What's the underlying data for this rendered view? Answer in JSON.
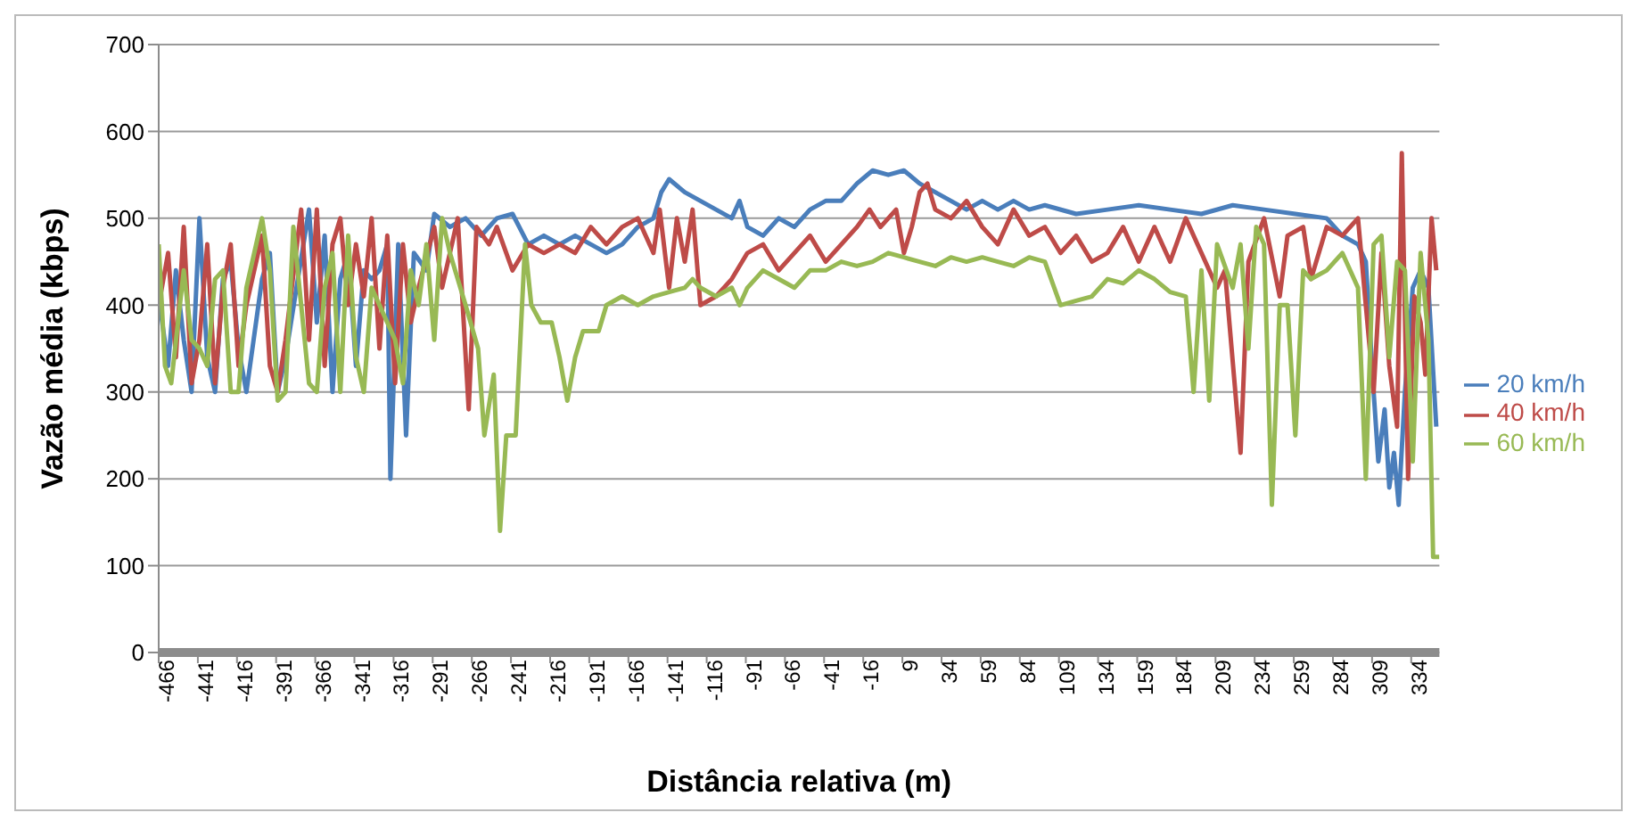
{
  "chart_data": {
    "type": "line",
    "xlabel": "Distância relativa (m)",
    "ylabel": "Vazão média (kbps)",
    "xlim": [
      -466,
      352
    ],
    "xticks": [
      -466,
      -441,
      -416,
      -391,
      -366,
      -341,
      -316,
      -291,
      -266,
      -241,
      -216,
      -191,
      -166,
      -141,
      -116,
      -91,
      -66,
      -41,
      -16,
      9,
      34,
      59,
      84,
      109,
      134,
      159,
      184,
      209,
      234,
      259,
      284,
      309,
      334
    ],
    "ylim": [
      0,
      700
    ],
    "yticks": [
      0,
      100,
      200,
      300,
      400,
      500,
      600,
      700
    ],
    "grid": "y",
    "legend": "right",
    "marker": "none",
    "line_style": "solid",
    "series": [
      {
        "name": "20 km/h",
        "color": "#4a7ebb",
        "x": [
          -466,
          -460,
          -455,
          -450,
          -445,
          -440,
          -435,
          -430,
          -425,
          -420,
          -415,
          -410,
          -400,
          -395,
          -390,
          -385,
          -378,
          -370,
          -365,
          -360,
          -355,
          -350,
          -345,
          -340,
          -335,
          -330,
          -325,
          -320,
          -318,
          -313,
          -308,
          -303,
          -295,
          -290,
          -280,
          -270,
          -260,
          -250,
          -240,
          -230,
          -220,
          -210,
          -200,
          -190,
          -180,
          -170,
          -160,
          -150,
          -145,
          -140,
          -130,
          -120,
          -110,
          -100,
          -95,
          -90,
          -80,
          -70,
          -60,
          -50,
          -40,
          -30,
          -20,
          -10,
          0,
          10,
          20,
          30,
          40,
          50,
          60,
          70,
          80,
          90,
          100,
          120,
          140,
          160,
          180,
          200,
          220,
          240,
          260,
          280,
          290,
          300,
          305,
          310,
          313,
          317,
          320,
          323,
          326,
          330,
          335,
          340,
          345,
          350
        ],
        "values": [
          410,
          330,
          440,
          360,
          300,
          500,
          340,
          300,
          430,
          450,
          350,
          300,
          430,
          460,
          300,
          340,
          420,
          510,
          380,
          480,
          300,
          430,
          460,
          330,
          440,
          430,
          440,
          470,
          200,
          470,
          250,
          460,
          440,
          505,
          490,
          500,
          480,
          500,
          505,
          470,
          480,
          470,
          480,
          470,
          460,
          470,
          490,
          500,
          530,
          545,
          530,
          520,
          510,
          500,
          520,
          490,
          480,
          500,
          490,
          510,
          520,
          520,
          540,
          555,
          550,
          555,
          540,
          530,
          520,
          510,
          520,
          510,
          520,
          510,
          515,
          505,
          510,
          515,
          510,
          505,
          515,
          510,
          505,
          500,
          480,
          470,
          450,
          300,
          220,
          280,
          190,
          230,
          170,
          300,
          420,
          440,
          420,
          260
        ]
      },
      {
        "name": "40 km/h",
        "color": "#be4b48",
        "x": [
          -466,
          -460,
          -455,
          -450,
          -445,
          -440,
          -435,
          -430,
          -425,
          -420,
          -415,
          -410,
          -400,
          -395,
          -390,
          -385,
          -375,
          -370,
          -365,
          -360,
          -355,
          -350,
          -345,
          -340,
          -335,
          -330,
          -325,
          -320,
          -315,
          -310,
          -305,
          -300,
          -290,
          -285,
          -275,
          -268,
          -263,
          -255,
          -250,
          -240,
          -230,
          -220,
          -210,
          -200,
          -190,
          -180,
          -170,
          -160,
          -150,
          -146,
          -140,
          -135,
          -130,
          -125,
          -120,
          -110,
          -100,
          -90,
          -80,
          -70,
          -60,
          -50,
          -40,
          -30,
          -20,
          -12,
          -5,
          5,
          10,
          15,
          20,
          25,
          30,
          40,
          50,
          60,
          70,
          80,
          90,
          100,
          110,
          120,
          130,
          140,
          150,
          160,
          170,
          180,
          190,
          200,
          210,
          215,
          225,
          230,
          240,
          250,
          255,
          265,
          270,
          280,
          290,
          300,
          305,
          310,
          315,
          320,
          325,
          328,
          332,
          336,
          340,
          343,
          347,
          350
        ],
        "values": [
          400,
          460,
          340,
          490,
          310,
          360,
          470,
          310,
          420,
          470,
          330,
          400,
          480,
          330,
          300,
          360,
          510,
          360,
          510,
          330,
          470,
          500,
          400,
          470,
          410,
          500,
          350,
          480,
          310,
          470,
          380,
          420,
          490,
          420,
          500,
          280,
          490,
          470,
          490,
          440,
          470,
          460,
          470,
          460,
          490,
          470,
          490,
          500,
          460,
          510,
          420,
          500,
          450,
          510,
          400,
          410,
          430,
          460,
          470,
          440,
          460,
          480,
          450,
          470,
          490,
          510,
          490,
          510,
          460,
          490,
          530,
          540,
          510,
          500,
          520,
          490,
          470,
          510,
          480,
          490,
          460,
          480,
          450,
          460,
          490,
          450,
          490,
          450,
          500,
          460,
          420,
          440,
          230,
          450,
          500,
          410,
          480,
          490,
          430,
          490,
          480,
          500,
          400,
          300,
          460,
          330,
          260,
          575,
          200,
          410,
          380,
          320,
          500,
          440
        ]
      },
      {
        "name": "60 km/h",
        "color": "#98b954",
        "x": [
          -466,
          -462,
          -458,
          -450,
          -445,
          -440,
          -435,
          -430,
          -425,
          -420,
          -415,
          -410,
          -400,
          -395,
          -390,
          -385,
          -380,
          -375,
          -370,
          -365,
          -360,
          -355,
          -350,
          -345,
          -340,
          -335,
          -330,
          -325,
          -320,
          -315,
          -310,
          -305,
          -300,
          -295,
          -290,
          -285,
          -280,
          -270,
          -262,
          -258,
          -252,
          -248,
          -244,
          -238,
          -232,
          -228,
          -222,
          -215,
          -210,
          -205,
          -200,
          -195,
          -185,
          -180,
          -170,
          -160,
          -150,
          -140,
          -130,
          -125,
          -120,
          -110,
          -100,
          -95,
          -90,
          -80,
          -70,
          -60,
          -50,
          -40,
          -30,
          -20,
          -10,
          0,
          10,
          20,
          30,
          40,
          50,
          60,
          70,
          80,
          90,
          100,
          110,
          120,
          130,
          140,
          150,
          160,
          170,
          180,
          190,
          195,
          200,
          205,
          210,
          220,
          225,
          230,
          235,
          240,
          245,
          250,
          255,
          260,
          265,
          270,
          280,
          290,
          300,
          305,
          310,
          315,
          320,
          325,
          330,
          335,
          340,
          345,
          348,
          352
        ],
        "values": [
          470,
          330,
          310,
          440,
          360,
          350,
          330,
          430,
          440,
          300,
          300,
          420,
          500,
          440,
          290,
          300,
          490,
          400,
          310,
          300,
          420,
          460,
          300,
          480,
          340,
          300,
          420,
          400,
          380,
          360,
          310,
          440,
          400,
          470,
          360,
          500,
          460,
          400,
          350,
          250,
          320,
          140,
          250,
          250,
          470,
          400,
          380,
          380,
          340,
          290,
          340,
          370,
          370,
          400,
          410,
          400,
          410,
          415,
          420,
          430,
          420,
          410,
          420,
          400,
          420,
          440,
          430,
          420,
          440,
          440,
          450,
          445,
          450,
          460,
          455,
          450,
          445,
          455,
          450,
          455,
          450,
          445,
          455,
          450,
          400,
          405,
          410,
          430,
          425,
          440,
          430,
          415,
          410,
          300,
          440,
          290,
          470,
          420,
          470,
          350,
          490,
          470,
          170,
          400,
          400,
          250,
          440,
          430,
          440,
          460,
          420,
          200,
          470,
          480,
          340,
          450,
          440,
          220,
          460,
          360,
          110,
          110
        ]
      }
    ]
  }
}
